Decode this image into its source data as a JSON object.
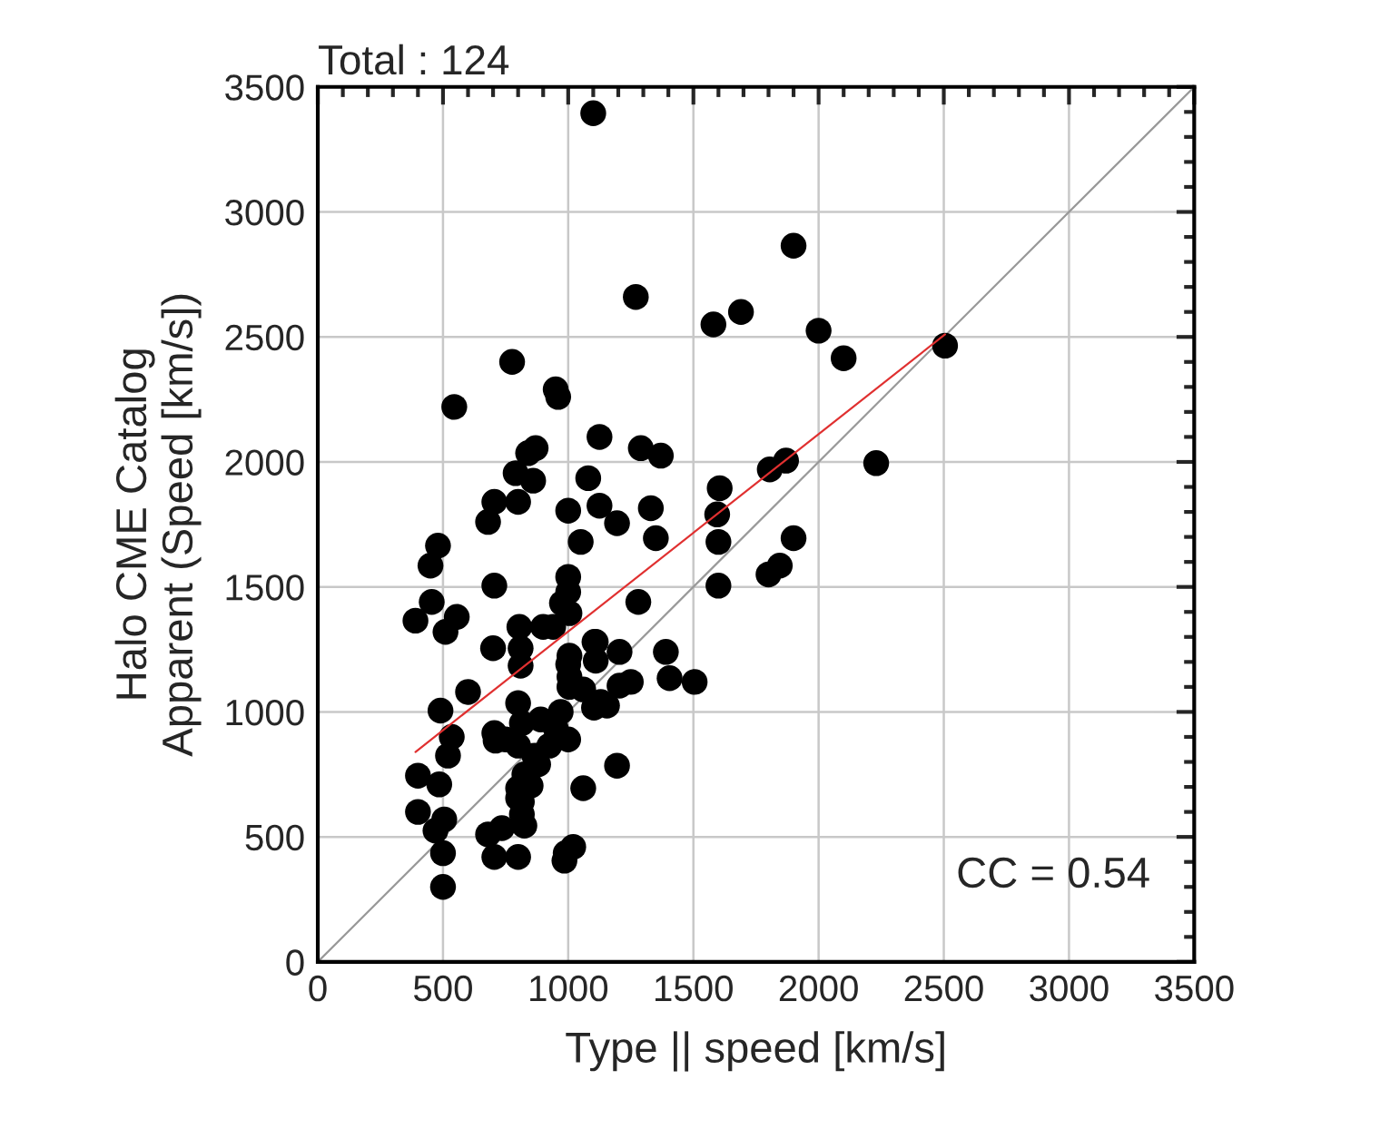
{
  "chart_data": {
    "type": "scatter",
    "title": "Total : 124",
    "xlabel": "Type || speed [km/s]",
    "ylabel": "Halo CME Catalog\nApparent (Speed [km/s])",
    "annotations": [
      "CC = 0.54"
    ],
    "xlim": [
      0,
      3500
    ],
    "ylim": [
      0,
      3500
    ],
    "xticks": [
      0,
      500,
      1000,
      1500,
      2000,
      2500,
      3000,
      3500
    ],
    "yticks": [
      0,
      500,
      1000,
      1500,
      2000,
      2500,
      3000,
      3500
    ],
    "grid": true,
    "legend": false,
    "marker": "circle",
    "series": [
      {
        "color": "#000000",
        "x": [
          1100,
          1900,
          1270,
          1580,
          1690,
          2000,
          2100,
          2505,
          776,
          950,
          960,
          545,
          1125,
          1290,
          1370,
          870,
          840,
          790,
          860,
          1080,
          800,
          705,
          680,
          1000,
          1125,
          1195,
          1330,
          1350,
          1050,
          1605,
          1595,
          1600,
          1600,
          1805,
          1870,
          1900,
          1800,
          1845,
          2230,
          480,
          450,
          705,
          455,
          555,
          510,
          390,
          1000,
          1000,
          975,
          1005,
          900,
          940,
          805,
          810,
          700,
          810,
          1280,
          1105,
          1205,
          1005,
          1005,
          1005,
          600,
          490,
          800,
          815,
          890,
          970,
          1060,
          1130,
          1390,
          1405,
          1505,
          1195,
          1060,
          535,
          520,
          705,
          750,
          800,
          865,
          925,
          1000,
          825,
          800,
          815,
          815,
          825,
          400,
          485,
          400,
          505,
          470,
          500,
          500,
          680,
          705,
          800,
          735,
          990,
          1020,
          880,
          850,
          950,
          1103,
          710,
          800,
          985,
          1205,
          1250,
          1155,
          1000,
          1110,
          1110
        ],
        "values": [
          3395,
          2865,
          2660,
          2550,
          2600,
          2525,
          2415,
          2465,
          2400,
          2290,
          2260,
          2220,
          2100,
          2055,
          2025,
          2055,
          2035,
          1955,
          1925,
          1935,
          1840,
          1840,
          1760,
          1805,
          1825,
          1755,
          1815,
          1695,
          1680,
          1895,
          1790,
          1680,
          1505,
          1970,
          2005,
          1695,
          1550,
          1585,
          1995,
          1665,
          1585,
          1505,
          1440,
          1380,
          1320,
          1365,
          1540,
          1480,
          1435,
          1395,
          1340,
          1340,
          1340,
          1255,
          1255,
          1185,
          1440,
          1280,
          1240,
          1225,
          1140,
          1100,
          1080,
          1005,
          1035,
          955,
          970,
          1000,
          1090,
          1040,
          1240,
          1135,
          1120,
          785,
          695,
          900,
          825,
          915,
          890,
          865,
          825,
          865,
          890,
          750,
          695,
          640,
          590,
          545,
          745,
          710,
          600,
          570,
          525,
          435,
          300,
          510,
          420,
          420,
          535,
          435,
          460,
          790,
          705,
          935,
          1017,
          885,
          655,
          405,
          1105,
          1120,
          1025,
          1190,
          1280,
          1205
        ]
      },
      {
        "type": "line",
        "marker": "none",
        "color": "#e03030",
        "x": [
          390,
          2505
        ],
        "values": [
          840,
          2510
        ]
      },
      {
        "type": "line",
        "marker": "none",
        "color": "#999999",
        "x": [
          0,
          3500
        ],
        "values": [
          0,
          3500
        ]
      }
    ]
  }
}
